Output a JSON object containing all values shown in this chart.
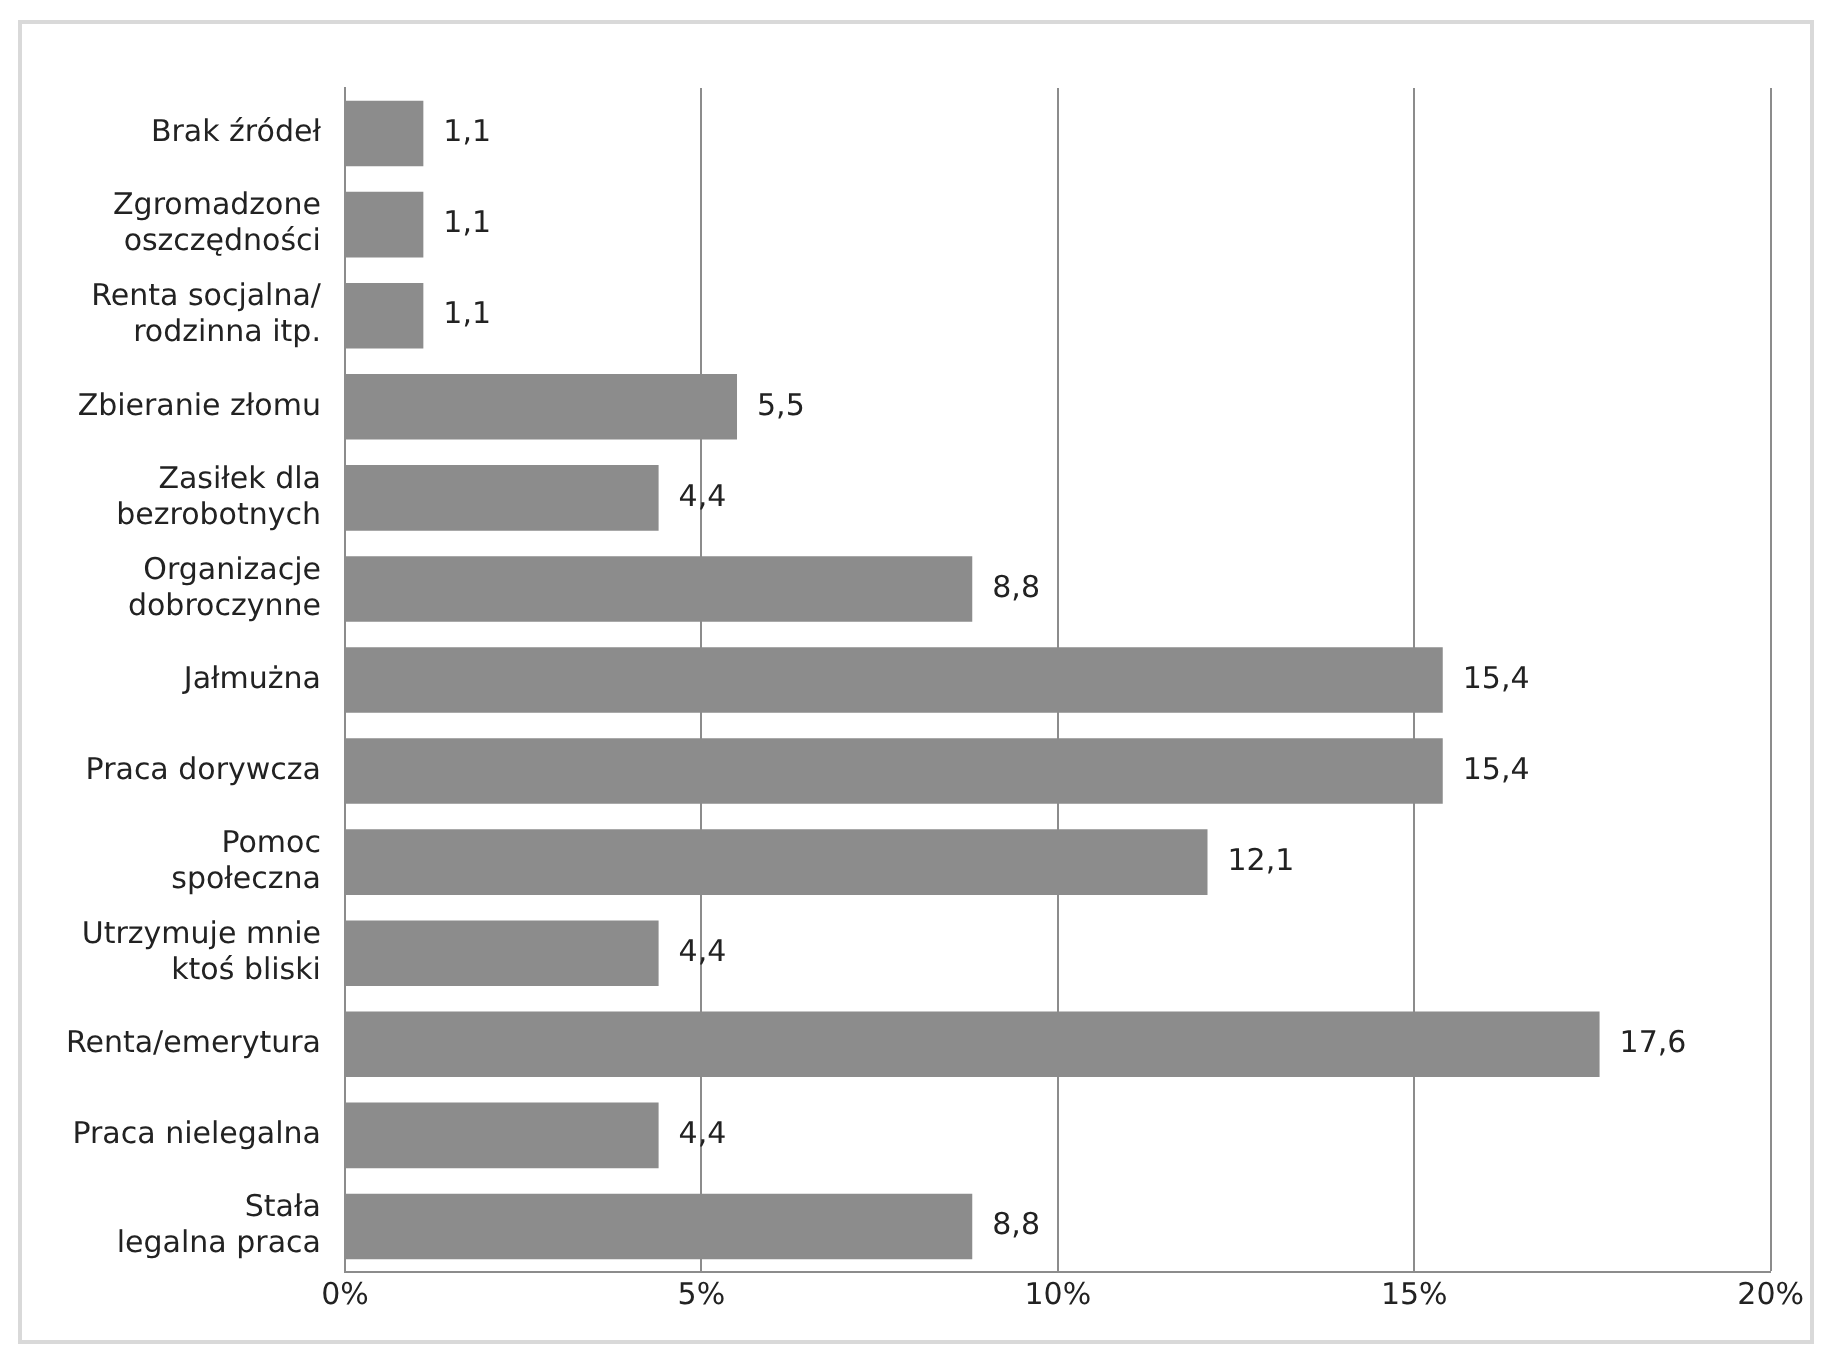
{
  "chart_data": {
    "type": "bar",
    "orientation": "horizontal",
    "categories": [
      "Brak źródeł",
      "Zgromadzone\noszczędności",
      "Renta socjalna/\nrodzinna itp.",
      "Zbieranie złomu",
      "Zasiłek dla\nbezrobotnych",
      "Organizacje\ndobroczynne",
      "Jałmużna",
      "Praca dorywcza",
      "Pomoc\nspołeczna",
      "Utrzymuje mnie\nktoś bliski",
      "Renta/emerytura",
      "Praca nielegalna",
      "Stała\nlegalna praca"
    ],
    "values": [
      1.1,
      1.1,
      1.1,
      5.5,
      4.4,
      8.8,
      15.4,
      15.4,
      12.1,
      4.4,
      17.6,
      4.4,
      8.8
    ],
    "value_labels": [
      "1,1",
      "1,1",
      "1,1",
      "5,5",
      "4,4",
      "8,8",
      "15,4",
      "15,4",
      "12,1",
      "4,4",
      "17,6",
      "4,4",
      "8,8"
    ],
    "color": "#8c8c8c",
    "xlim": [
      0,
      20
    ],
    "xticks": [
      {
        "value": 0,
        "label": "0%"
      },
      {
        "value": 5,
        "label": "5%"
      },
      {
        "value": 10,
        "label": "10%"
      },
      {
        "value": 15,
        "label": "15%"
      },
      {
        "value": 20,
        "label": "20%"
      }
    ],
    "grid": "x"
  }
}
